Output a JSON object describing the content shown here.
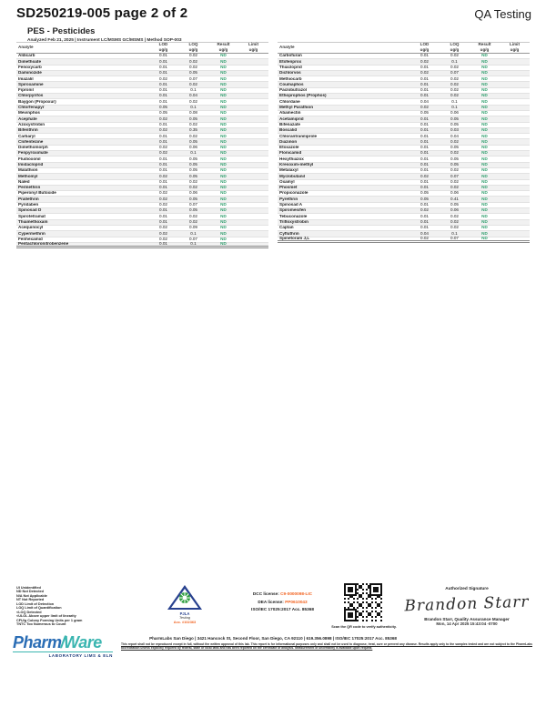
{
  "header": {
    "title": "SD250219-005 page 2 of 2",
    "qa_label": "QA Testing"
  },
  "section": {
    "title": "PES - Pesticides",
    "meta": "Analyzed Feb 21, 2025  |  Instrument LC/MSMS GC/MSMS  |  Method SOP-003"
  },
  "table": {
    "header": {
      "analyte": "Analyte",
      "unit": "ug/g",
      "cols": [
        "LOD",
        "LOQ",
        "Result",
        "Limit"
      ]
    },
    "left_rows": [
      [
        "Aldicarb",
        "0.01",
        "0.02",
        "ND"
      ],
      [
        "Dimethoate",
        "0.01",
        "0.02",
        "ND"
      ],
      [
        "Fenoxycarb",
        "0.01",
        "0.02",
        "ND"
      ],
      [
        "Daminozide",
        "0.01",
        "0.05",
        "ND"
      ],
      [
        "Imazalil",
        "0.02",
        "0.07",
        "ND"
      ],
      [
        "Spiroxamine",
        "0.01",
        "0.02",
        "ND"
      ],
      [
        "Fipronil",
        "0.01",
        "0.1",
        "ND"
      ],
      [
        "Chlorpyrifos",
        "0.01",
        "0.04",
        "ND"
      ],
      [
        "Baygon (Propoxur)",
        "0.01",
        "0.02",
        "ND"
      ],
      [
        "Chlorfenapyr",
        "0.05",
        "0.1",
        "ND"
      ],
      [
        "Mevinphos",
        "0.05",
        "0.08",
        "ND"
      ],
      [
        "Acephate",
        "0.02",
        "0.05",
        "ND"
      ],
      [
        "Azoxystrobin",
        "0.01",
        "0.02",
        "ND"
      ],
      [
        "Bifenthrin",
        "0.02",
        "0.35",
        "ND"
      ],
      [
        "Carbaryl",
        "0.01",
        "0.02",
        "ND"
      ],
      [
        "Clofentezine",
        "0.01",
        "0.05",
        "ND"
      ],
      [
        "Dimethomorph",
        "0.02",
        "0.06",
        "ND"
      ],
      [
        "Fenpyroximate",
        "0.02",
        "0.1",
        "ND"
      ],
      [
        "Fludioxonil",
        "0.01",
        "0.05",
        "ND"
      ],
      [
        "Imidacloprid",
        "0.01",
        "0.05",
        "ND"
      ],
      [
        "Malathion",
        "0.01",
        "0.05",
        "ND"
      ],
      [
        "Methomyl",
        "0.02",
        "0.05",
        "ND"
      ],
      [
        "Naled",
        "0.01",
        "0.02",
        "ND"
      ],
      [
        "Permethrin",
        "0.01",
        "0.02",
        "ND"
      ],
      [
        "Piperonyl Butoxide",
        "0.02",
        "0.06",
        "ND"
      ],
      [
        "Prallethrin",
        "0.02",
        "0.05",
        "ND"
      ],
      [
        "Pyridaben",
        "0.02",
        "0.07",
        "ND"
      ],
      [
        "Spinosad D",
        "0.01",
        "0.05",
        "ND"
      ],
      [
        "Spirotetramat",
        "0.01",
        "0.02",
        "ND"
      ],
      [
        "Thiamethoxam",
        "0.01",
        "0.02",
        "ND"
      ],
      [
        "Acequinocyl",
        "0.02",
        "0.09",
        "ND"
      ],
      [
        "Cypermethrin",
        "0.02",
        "0.1",
        "ND"
      ],
      [
        "Fenhexamid",
        "0.02",
        "0.07",
        "ND"
      ],
      [
        "Pentachloronitrobenzene",
        "0.01",
        "0.1",
        "ND"
      ]
    ],
    "right_rows": [
      [
        "Carbofuran",
        "0.01",
        "0.02",
        "ND"
      ],
      [
        "Etofenprox",
        "0.02",
        "0.1",
        "ND"
      ],
      [
        "Thiacloprid",
        "0.01",
        "0.02",
        "ND"
      ],
      [
        "Dichlorvos",
        "0.02",
        "0.07",
        "ND"
      ],
      [
        "Methiocarb",
        "0.01",
        "0.02",
        "ND"
      ],
      [
        "Coumaphos",
        "0.01",
        "0.02",
        "ND"
      ],
      [
        "Paclobutrazol",
        "0.01",
        "0.02",
        "ND"
      ],
      [
        "Ethoprophos (Prophos)",
        "0.01",
        "0.02",
        "ND"
      ],
      [
        "Chlordane",
        "0.04",
        "0.1",
        "ND"
      ],
      [
        "Methyl Parathion",
        "0.02",
        "0.1",
        "ND"
      ],
      [
        "Abamectin",
        "0.05",
        "0.06",
        "ND"
      ],
      [
        "Acetamiprid",
        "0.01",
        "0.05",
        "ND"
      ],
      [
        "Bifenazate",
        "0.01",
        "0.05",
        "ND"
      ],
      [
        "Boscalid",
        "0.01",
        "0.03",
        "ND"
      ],
      [
        "Chlorantraniliprole",
        "0.01",
        "0.04",
        "ND"
      ],
      [
        "Diazinon",
        "0.01",
        "0.02",
        "ND"
      ],
      [
        "Etoxazole",
        "0.01",
        "0.05",
        "ND"
      ],
      [
        "Flonicamid",
        "0.01",
        "0.02",
        "ND"
      ],
      [
        "Hexythiazox",
        "0.01",
        "0.05",
        "ND"
      ],
      [
        "Kresoxim-methyl",
        "0.01",
        "0.05",
        "ND"
      ],
      [
        "Metalaxyl",
        "0.01",
        "0.02",
        "ND"
      ],
      [
        "Myclobutanil",
        "0.02",
        "0.07",
        "ND"
      ],
      [
        "Oxamyl",
        "0.01",
        "0.02",
        "ND"
      ],
      [
        "Phosmet",
        "0.01",
        "0.02",
        "ND"
      ],
      [
        "Propiconazole",
        "0.05",
        "0.06",
        "ND"
      ],
      [
        "Pyrethrin",
        "0.05",
        "0.41",
        "ND"
      ],
      [
        "Spinosad A",
        "0.01",
        "0.05",
        "ND"
      ],
      [
        "Spiromesifen",
        "0.02",
        "0.06",
        "ND"
      ],
      [
        "Tebuconazole",
        "0.01",
        "0.02",
        "ND"
      ],
      [
        "Trifloxystrobin",
        "0.01",
        "0.02",
        "ND"
      ],
      [
        "Captan",
        "0.01",
        "0.02",
        "ND"
      ],
      [
        "Cyfluthrin",
        "0.04",
        "0.1",
        "ND"
      ],
      [
        "Spinetoram J,L",
        "0.02",
        "0.07",
        "ND"
      ]
    ]
  },
  "footer": {
    "legend": [
      "UI Unidentified",
      "ND Not Detected",
      "N/A Not Applicable",
      "NT Not Reported",
      "LOD Limit of Detection",
      "LOQ Limit of Quantification",
      "<LOQ Detected",
      "<ULOL Above upper limit of linearity",
      "CFU/g Colony Forming Units per 1 gram",
      "TNTC Too Numerous to Count"
    ],
    "pjla": {
      "name": "PJLA",
      "sub": "Testing",
      "acc": "Acc. #102363"
    },
    "licenses": {
      "dcc_label": "DCC license:",
      "dcc_value": "C9-0000098-LIC",
      "dea_label": "DEA license:",
      "dea_value": "PP0610043",
      "iso": "ISO/IEC 17025:2017 Acc. 85368"
    },
    "qr_caption": "Scan the QR code to verify authenticity.",
    "signature": {
      "label": "Authorized Signature",
      "name": "Brandon  Starr",
      "line1": "Brandon Starr, Quality Assurance Manager",
      "line2": "Mon, 14 Apr 2025 15:43:04 -0700"
    },
    "address": "PharmLabs San Diego | 3421 Hancock St, Second Floor, San Diego, CA 92110 | 619.356.0898 | ISO/IEC 17025:2017 Acc. 85368",
    "disclaimer": "This report shall not be reproduced except in full, without the written approval of this lab. This report is for informational purposes only and shall not be used to diagnose, treat, cure or prevent any disease. Results apply only to the samples tested and are not subject to the PharmLabs accreditation unless explicitly required by federal, state or local laws and has been reported on the certificate of analysis. Measurement of uncertainty is available upon request.",
    "logo": {
      "part1": "Pharm",
      "part2": "Ware",
      "tagline": "LABORATORY LIMS & ELN"
    }
  },
  "colors": {
    "nd": "#2f9e6d",
    "accent_orange": "#f26422",
    "logo_blue": "#2a6db5",
    "logo_teal": "#3ab5b0"
  }
}
